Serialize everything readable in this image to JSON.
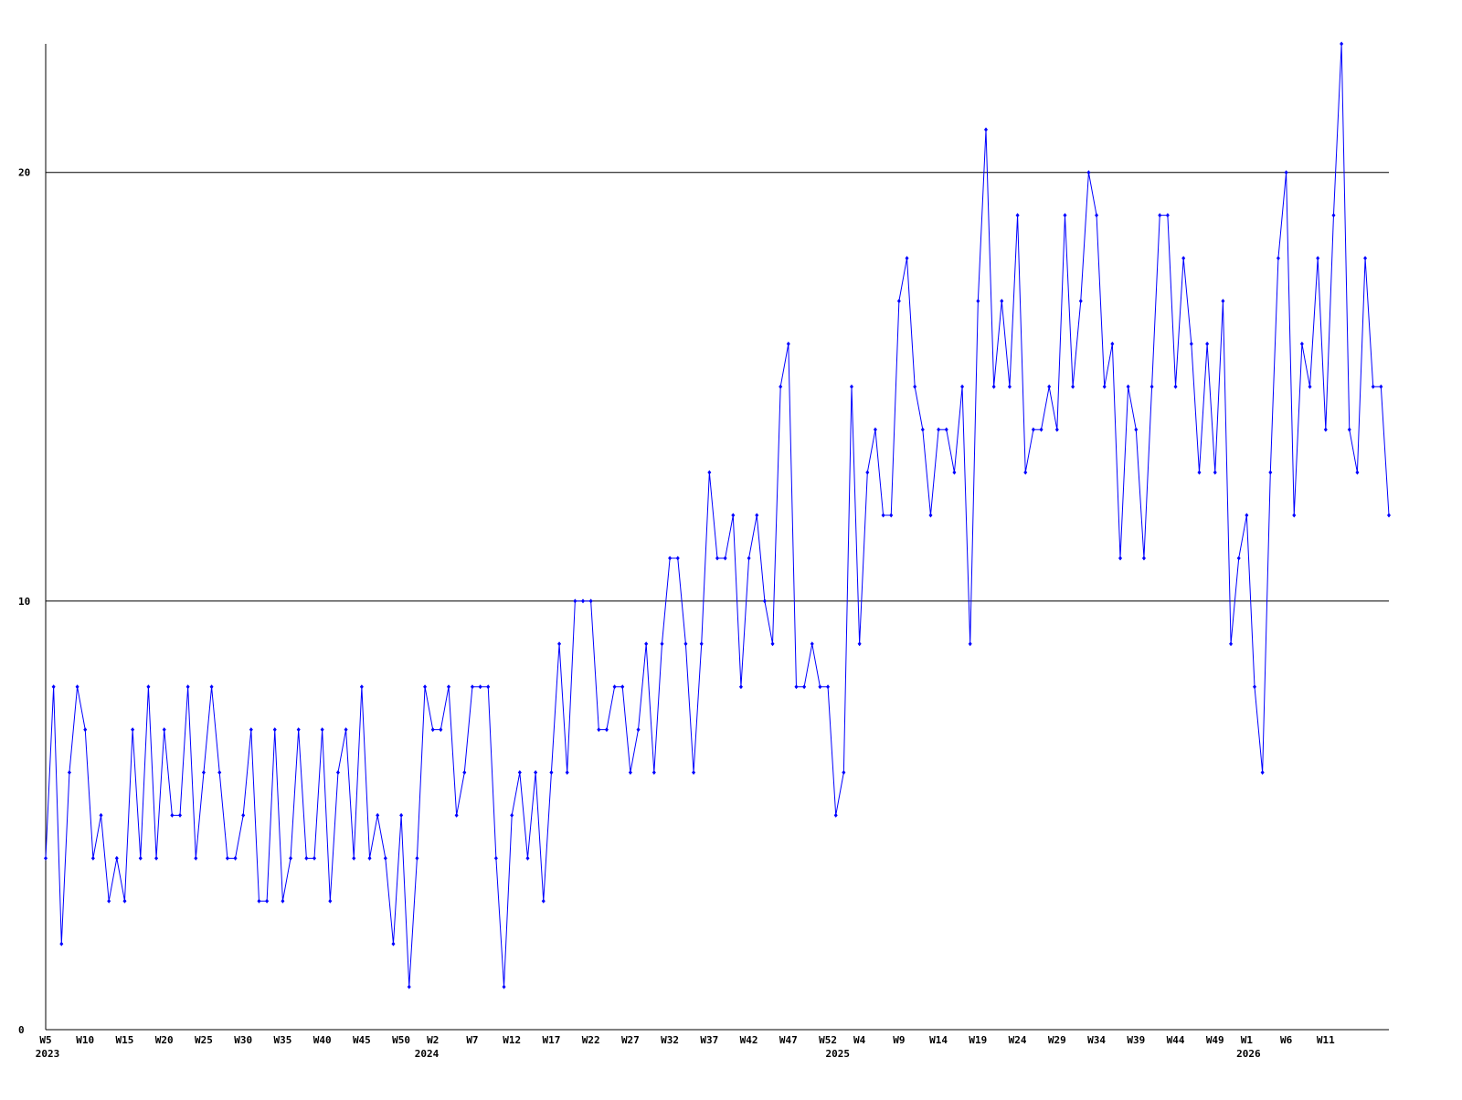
{
  "chart_data": {
    "type": "line",
    "categories": [
      "W5",
      null,
      null,
      null,
      null,
      "W10",
      null,
      null,
      null,
      null,
      "W15",
      null,
      null,
      null,
      null,
      "W20",
      null,
      null,
      null,
      null,
      "W25",
      null,
      null,
      null,
      null,
      "W30",
      null,
      null,
      null,
      null,
      "W35",
      null,
      null,
      null,
      null,
      "W40",
      null,
      null,
      null,
      null,
      "W45",
      null,
      null,
      null,
      null,
      "W50",
      null,
      null,
      null,
      "W2",
      null,
      null,
      null,
      null,
      "W7",
      null,
      null,
      null,
      null,
      "W12",
      null,
      null,
      null,
      null,
      "W17",
      null,
      null,
      null,
      null,
      "W22",
      null,
      null,
      null,
      null,
      "W27",
      null,
      null,
      null,
      null,
      "W32",
      null,
      null,
      null,
      null,
      "W37",
      null,
      null,
      null,
      null,
      "W42",
      null,
      null,
      null,
      null,
      "W47",
      null,
      null,
      null,
      null,
      "W52",
      null,
      null,
      null,
      "W4",
      null,
      null,
      null,
      null,
      "W9",
      null,
      null,
      null,
      null,
      "W14",
      null,
      null,
      null,
      null,
      "W19",
      null,
      null,
      null,
      null,
      "W24",
      null,
      null,
      null,
      null,
      "W29",
      null,
      null,
      null,
      null,
      "W34",
      null,
      null,
      null,
      null,
      "W39",
      null,
      null,
      null,
      null,
      "W44",
      null,
      null,
      null,
      null,
      "W49",
      null,
      null,
      null,
      "W1",
      null,
      null,
      null,
      null,
      "W6",
      null,
      null,
      null,
      null,
      "W11",
      null,
      null,
      null,
      null,
      null,
      null,
      null,
      null
    ],
    "x_years": [
      "2023",
      null,
      null,
      null,
      null,
      null,
      null,
      null,
      null,
      null,
      null,
      null,
      null,
      null,
      null,
      null,
      null,
      null,
      null,
      null,
      null,
      null,
      null,
      null,
      null,
      null,
      null,
      null,
      null,
      null,
      null,
      null,
      null,
      null,
      null,
      null,
      null,
      null,
      null,
      null,
      null,
      null,
      null,
      null,
      null,
      null,
      null,
      null,
      "2024",
      null,
      null,
      null,
      null,
      null,
      null,
      null,
      null,
      null,
      null,
      null,
      null,
      null,
      null,
      null,
      null,
      null,
      null,
      null,
      null,
      null,
      null,
      null,
      null,
      null,
      null,
      null,
      null,
      null,
      null,
      null,
      null,
      null,
      null,
      null,
      null,
      null,
      null,
      null,
      null,
      null,
      null,
      null,
      null,
      null,
      null,
      null,
      null,
      null,
      null,
      null,
      "2025",
      null,
      null,
      null,
      null,
      null,
      null,
      null,
      null,
      null,
      null,
      null,
      null,
      null,
      null,
      null,
      null,
      null,
      null,
      null,
      null,
      null,
      null,
      null,
      null,
      null,
      null,
      null,
      null,
      null,
      null,
      null,
      null,
      null,
      null,
      null,
      null,
      null,
      null,
      null,
      null,
      null,
      null,
      null,
      null,
      null,
      null,
      null,
      null,
      null,
      null,
      null,
      "2026",
      null,
      null,
      null,
      null,
      null,
      null,
      null,
      null,
      null,
      null,
      null,
      null,
      null,
      null,
      null,
      null,
      null,
      null
    ],
    "values": [
      4,
      8,
      2,
      6,
      8,
      7,
      4,
      5,
      3,
      4,
      3,
      7,
      4,
      8,
      4,
      7,
      5,
      5,
      8,
      4,
      6,
      8,
      6,
      4,
      4,
      5,
      7,
      3,
      3,
      7,
      3,
      4,
      7,
      4,
      4,
      7,
      3,
      6,
      7,
      4,
      8,
      4,
      5,
      4,
      2,
      5,
      1,
      4,
      8,
      7,
      7,
      8,
      5,
      6,
      8,
      8,
      8,
      4,
      1,
      5,
      6,
      4,
      6,
      3,
      6,
      9,
      6,
      10,
      10,
      10,
      7,
      7,
      8,
      8,
      6,
      7,
      9,
      6,
      9,
      11,
      11,
      9,
      6,
      9,
      13,
      11,
      11,
      12,
      8,
      11,
      12,
      10,
      9,
      15,
      16,
      8,
      8,
      9,
      8,
      8,
      5,
      6,
      15,
      9,
      13,
      14,
      12,
      12,
      17,
      18,
      15,
      14,
      12,
      14,
      14,
      13,
      15,
      9,
      17,
      21,
      15,
      17,
      15,
      19,
      13,
      14,
      14,
      15,
      14,
      19,
      15,
      17,
      20,
      19,
      15,
      16,
      11,
      15,
      14,
      11,
      15,
      19,
      19,
      15,
      18,
      16,
      13,
      16,
      13,
      17,
      9,
      11,
      12,
      8,
      6,
      13,
      18,
      20,
      12,
      16,
      15,
      18,
      14,
      19,
      23,
      14,
      13,
      18,
      15,
      15,
      12
    ],
    "color": "#0000ff",
    "ylim": [
      0,
      23
    ],
    "yticks": [
      0,
      10,
      20
    ],
    "grid": true
  }
}
